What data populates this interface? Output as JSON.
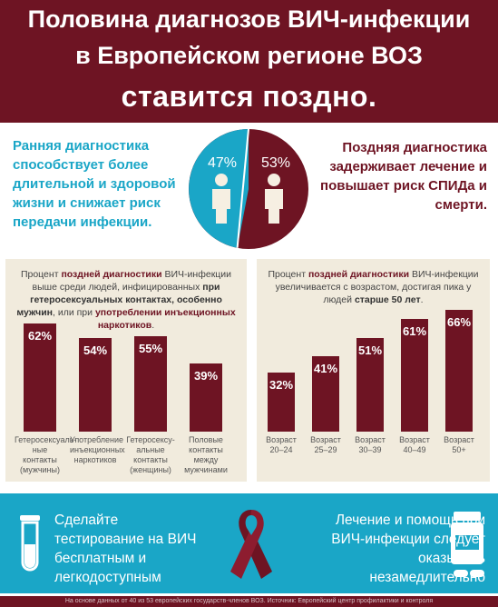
{
  "header": {
    "line1": "Половина диагнозов ВИЧ-инфекции",
    "line2": "в Европейском регионе ВОЗ",
    "line3": "ставится поздно."
  },
  "intro": {
    "left": "Ранняя диагностика способствует более длительной и здоровой жизни и снижает риск передачи инфекции.",
    "right": "Поздняя диагностика задерживает лечение и повышает риск СПИДа и смерти.",
    "early_pct": "47%",
    "late_pct": "53%"
  },
  "left_panel": {
    "t1": "Процент ",
    "t2": "поздней диагностики",
    "t3": " ВИЧ-инфекции выше среди людей, инфицированных ",
    "t4": "при гетеросексуальных контактах, особенно мужчин",
    "t5": ", или при ",
    "t6": "употреблении инъекционных наркотиков",
    "t7": "."
  },
  "right_panel": {
    "t1": "Процент ",
    "t2": "поздней диагностики",
    "t3": " ВИЧ-инфекции увеличивается с возрастом, достигая пика у людей ",
    "t4": "старше 50 лет",
    "t5": "."
  },
  "chart_data": [
    {
      "type": "bar",
      "categories": [
        "Гетеросексуаль-ные контакты (мужчины)",
        "Употребление инъекционных наркотиков",
        "Гетеросексу-альные контакты (женщины)",
        "Половые контакты между мужчинами"
      ],
      "values": [
        62,
        54,
        55,
        39
      ],
      "labels": [
        "62%",
        "54%",
        "55%",
        "39%"
      ],
      "ylim": [
        0,
        70
      ]
    },
    {
      "type": "bar",
      "categories": [
        "Возраст 20–24",
        "Возраст 25–29",
        "Возраст 30–39",
        "Возраст 40–49",
        "Возраст 50+"
      ],
      "values": [
        32,
        41,
        51,
        61,
        66
      ],
      "labels": [
        "32%",
        "41%",
        "51%",
        "61%",
        "66%"
      ],
      "ylim": [
        0,
        70
      ]
    }
  ],
  "footer": {
    "left": "Сделайте тестирование на ВИЧ бесплатным и легкодоступным",
    "right": "Лечение и помощь при ВИЧ-инфекции следует оказывать незамедлительно",
    "source": "На основе данных от 40 из 53 европейских государств-членов ВОЗ. Источник: Европейский центр профилактики и контроля"
  },
  "colors": {
    "maroon": "#6e1423",
    "cyan": "#1aa6c7",
    "beige": "#f1ebdd"
  },
  "icons": [
    "person-icon",
    "test-tube-icon",
    "red-ribbon-icon",
    "pill-bottle-icon"
  ]
}
